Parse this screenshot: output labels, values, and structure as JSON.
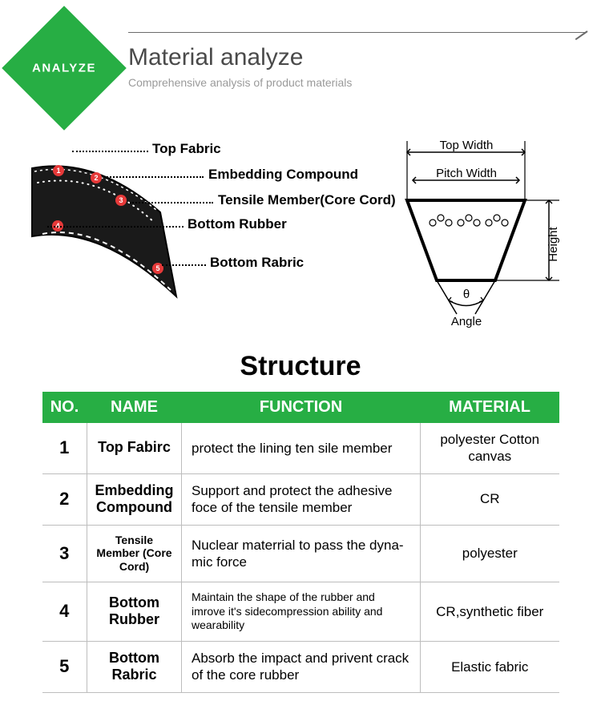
{
  "header": {
    "badge": "ANALYZE",
    "title": "Material analyze",
    "subtitle": "Comprehensive analysis of product materials",
    "badge_color": "#27ae44"
  },
  "diagram": {
    "callouts": [
      "Top Fabric",
      "Embedding Compound",
      "Tensile Member(Core Cord)",
      "Bottom Rubber",
      "Bottom Rabric"
    ],
    "cross_section_labels": {
      "top_width": "Top Width",
      "pitch_width": "Pitch Width",
      "height": "Height",
      "angle": "Angle",
      "theta": "θ"
    },
    "marker_color": "#e63939",
    "belt_color": "#1a1a1a"
  },
  "structure_title": "Structure",
  "table": {
    "headers": [
      "NO.",
      "NAME",
      "FUNCTION",
      "MATERIAL"
    ],
    "header_bg": "#27ae44",
    "header_fg": "#ffffff",
    "rows": [
      {
        "no": "1",
        "name": "Top Fabirc",
        "func": "protect the lining ten sile member",
        "mat": "polyester Cotton canvas"
      },
      {
        "no": "2",
        "name": "Embedding Compound",
        "func": "Support and protect the adhesive foce of the tensile member",
        "mat": "CR"
      },
      {
        "no": "3",
        "name": "Tensile Member (Core Cord)",
        "func": "Nuclear materrial to pass the dyna- mic force",
        "mat": "polyester",
        "name_small": true
      },
      {
        "no": "4",
        "name": "Bottom Rubber",
        "func": "Maintain the shape of the rubber and imrove it's sidecompression ability and wearability",
        "mat": "CR,synthetic fiber",
        "func_small": true
      },
      {
        "no": "5",
        "name": "Bottom Rabric",
        "func": "Absorb the impact and privent crack of the core rubber",
        "mat": "Elastic fabric"
      }
    ]
  }
}
